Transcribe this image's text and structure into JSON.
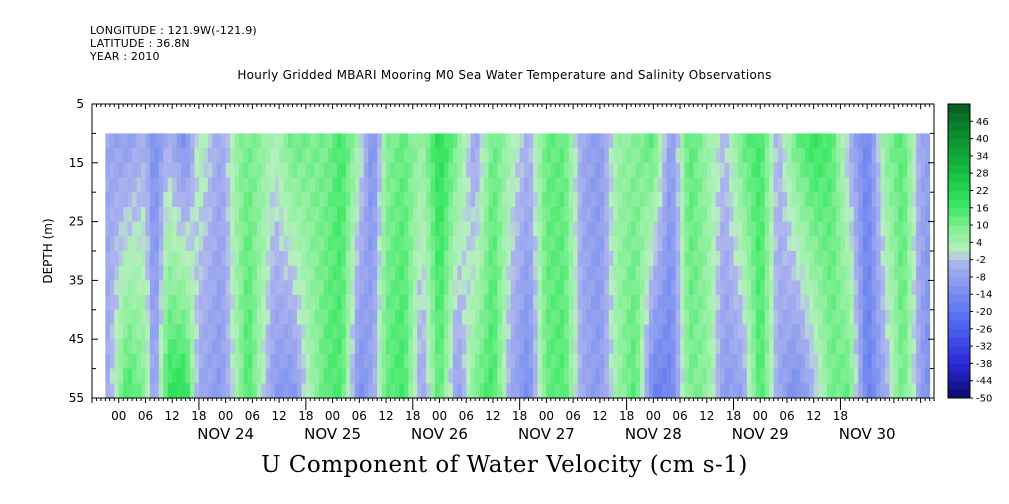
{
  "header": {
    "longitude": "LONGITUDE : 121.9W(-121.9)",
    "latitude": "LATITUDE : 36.8N",
    "year": "YEAR : 2010"
  },
  "chart_data": {
    "type": "heatmap",
    "title": "Hourly Gridded MBARI Mooring M0 Sea Water Temperature and Salinity Observations",
    "xlabel": "U Component of Water Velocity (cm s-1)",
    "ylabel": "DEPTH (m)",
    "y_range": [
      5,
      55
    ],
    "y_inverted": true,
    "y_ticks": [
      5,
      15,
      25,
      35,
      45,
      55
    ],
    "data_depth_range": [
      10,
      55
    ],
    "x_start": "NOV 23 2010 00:00",
    "x_end": "NOV 30 2010 21:00",
    "data_start": "NOV 23 2010 03:00",
    "hour_labels": [
      "00",
      "06",
      "12",
      "18",
      "00",
      "06",
      "12",
      "18",
      "00",
      "06",
      "12",
      "18",
      "00",
      "06",
      "12",
      "18",
      "00",
      "06",
      "12",
      "18",
      "00",
      "06",
      "12",
      "18",
      "00",
      "06",
      "12",
      "18"
    ],
    "day_labels": [
      "NOV 24",
      "NOV 25",
      "NOV 26",
      "NOV 27",
      "NOV 28",
      "NOV 29",
      "NOV 30"
    ],
    "colorbar": {
      "levels": [
        "46",
        "40",
        "34",
        "28",
        "22",
        "16",
        "10",
        "4",
        "-2",
        "-8",
        "-14",
        "-20",
        "-26",
        "-32",
        "-38",
        "-44",
        "-50"
      ],
      "min": -50,
      "max": 52,
      "step": 3
    },
    "u_profile": {
      "hours": [
        3,
        8,
        12,
        14,
        17,
        21,
        24,
        29,
        33,
        35,
        38,
        41,
        45,
        49,
        53,
        56,
        60,
        63,
        66,
        70,
        74,
        78,
        82,
        86,
        90,
        94,
        98,
        102,
        106,
        110,
        114,
        118,
        122,
        126,
        130,
        134,
        138,
        142,
        146,
        150,
        154,
        158,
        162,
        166,
        170,
        174,
        178,
        182,
        186,
        188
      ],
      "surface": [
        -6,
        -9,
        -4,
        -14,
        -4,
        -14,
        4,
        -6,
        8,
        10,
        8,
        2,
        12,
        10,
        10,
        16,
        4,
        -14,
        8,
        12,
        6,
        20,
        10,
        -8,
        12,
        4,
        -4,
        12,
        12,
        -6,
        -10,
        6,
        8,
        14,
        -10,
        14,
        6,
        -2,
        12,
        16,
        -4,
        12,
        18,
        14,
        -4,
        -16,
        8,
        14,
        -6,
        -8
      ],
      "bottom": [
        -8,
        16,
        8,
        -10,
        18,
        20,
        -6,
        -10,
        6,
        16,
        2,
        -10,
        -12,
        4,
        14,
        14,
        -14,
        -6,
        12,
        16,
        -8,
        14,
        -10,
        10,
        16,
        -6,
        -14,
        12,
        14,
        -6,
        -10,
        6,
        14,
        -18,
        -16,
        10,
        8,
        -10,
        -8,
        16,
        -6,
        -14,
        -4,
        10,
        12,
        -18,
        -6,
        12,
        -8,
        -14
      ]
    },
    "colors": {
      "strong_positive": "#065a20",
      "positive": "#1ee04a",
      "weak_positive": "#a8f0b0",
      "weak_negative": "#a8aeec",
      "negative": "#5c78f0",
      "strong_negative": "#0a0a6e"
    }
  }
}
